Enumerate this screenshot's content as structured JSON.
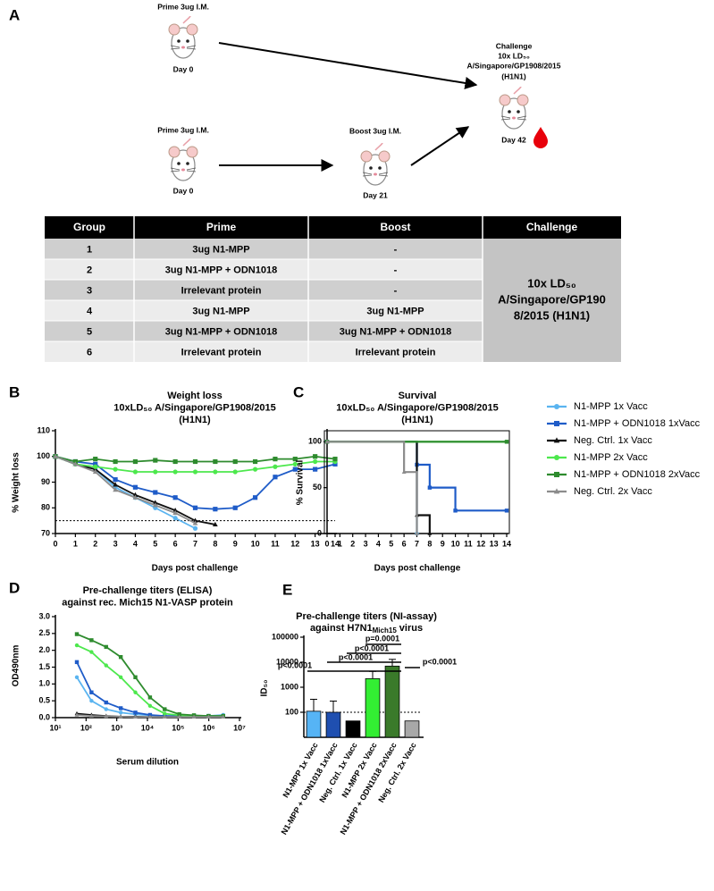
{
  "panel_labels": [
    "A",
    "B",
    "C",
    "D",
    "E"
  ],
  "schematic": {
    "prime_1": {
      "label": "Prime 3ug I.M.",
      "day": "Day 0"
    },
    "prime_2": {
      "label": "Prime 3ug I.M.",
      "day": "Day 0"
    },
    "boost": {
      "label": "Boost 3ug I.M.",
      "day": "Day 21"
    },
    "challenge": {
      "label": [
        "Challenge",
        "10x LD₅₀",
        "A/Singapore/GP1908/2015",
        "(H1N1)"
      ],
      "day": "Day 42"
    }
  },
  "table": {
    "header": [
      "Group",
      "Prime",
      "Boost",
      "Challenge"
    ],
    "rows": [
      [
        1,
        "3ug N1-MPP",
        "-"
      ],
      [
        2,
        "3ug N1-MPP + ODN1018",
        "-"
      ],
      [
        3,
        "Irrelevant protein",
        "-"
      ],
      [
        4,
        "3ug N1-MPP",
        "3ug N1-MPP"
      ],
      [
        5,
        "3ug N1-MPP + ODN1018",
        "3ug N1-MPP + ODN1018"
      ],
      [
        6,
        "Irrelevant protein",
        "Irrelevant protein"
      ]
    ],
    "challenge": [
      "10x LD₅₀",
      "A/Singapore/GP190",
      "8/2015 (H1N1)"
    ]
  },
  "chart_data": [
    {
      "type": "line",
      "title": [
        "Weight loss",
        "10xLD₅₀ A/Singapore/GP1908/2015",
        "(H1N1)"
      ],
      "x_label": "Days post challenge",
      "y_label": "% Weight loss",
      "x": [
        0,
        1,
        2,
        3,
        4,
        5,
        6,
        7,
        8,
        9,
        10,
        11,
        12,
        13,
        14
      ],
      "xlim": [
        0,
        14
      ],
      "xticks": [
        0,
        1,
        2,
        3,
        4,
        5,
        6,
        7,
        8,
        9,
        10,
        11,
        12,
        13,
        14
      ],
      "ylim": [
        70,
        110
      ],
      "yticks": [
        70,
        80,
        90,
        100,
        110
      ],
      "reference_line": 75,
      "series": [
        {
          "color": "#5ab4f0",
          "marker": "circle",
          "values": [
            100,
            97,
            95,
            88,
            84,
            80,
            76,
            72,
            null,
            null,
            null,
            null,
            null,
            null,
            null
          ]
        },
        {
          "color": "#1f5cc8",
          "marker": "square",
          "values": [
            100,
            98,
            97,
            91,
            88,
            86,
            84,
            80,
            79.5,
            80,
            84,
            92,
            95,
            95,
            97
          ]
        },
        {
          "color": "#111111",
          "marker": "triangle",
          "values": [
            100,
            97,
            95,
            89,
            85,
            82,
            79,
            75,
            73.5,
            null,
            null,
            null,
            null,
            null,
            null
          ]
        },
        {
          "color": "#4de84d",
          "marker": "circle",
          "values": [
            100,
            97,
            96,
            95,
            94,
            94,
            94,
            94,
            94,
            94,
            95,
            96,
            97,
            98,
            98
          ]
        },
        {
          "color": "#2e8b2e",
          "marker": "square",
          "values": [
            100,
            98,
            99,
            98,
            98,
            98.5,
            98,
            98,
            98,
            98,
            98,
            99,
            99,
            100,
            99
          ]
        },
        {
          "color": "#8c8c8c",
          "marker": "triangle",
          "values": [
            100,
            97,
            94,
            87,
            84,
            81,
            78,
            74,
            null,
            null,
            null,
            null,
            null,
            null,
            null
          ]
        }
      ]
    },
    {
      "type": "step",
      "title": [
        "Survival",
        "10xLD₅₀ A/Singapore/GP1908/2015",
        "(H1N1)"
      ],
      "x_label": "Days post challenge",
      "y_label": "% Survival",
      "xlim": [
        0,
        14
      ],
      "xticks": [
        0,
        1,
        2,
        3,
        4,
        5,
        6,
        7,
        8,
        9,
        10,
        11,
        12,
        13,
        14
      ],
      "ylim": [
        0,
        112
      ],
      "yticks": [
        0,
        50,
        100
      ],
      "legend": "right",
      "series": [
        {
          "name": "N1-MPP 1x Vacc",
          "color": "#5ab4f0",
          "marker": "circle",
          "x": [
            0,
            7
          ],
          "values": [
            100,
            0
          ]
        },
        {
          "name": "N1-MPP + ODN1018 1xVacc",
          "color": "#1f5cc8",
          "marker": "square",
          "x": [
            0,
            7,
            8,
            10,
            14
          ],
          "values": [
            100,
            75,
            50,
            25,
            25
          ]
        },
        {
          "name": "Neg. Ctrl. 1x Vacc",
          "color": "#111111",
          "marker": "triangle",
          "x": [
            0,
            7,
            8
          ],
          "values": [
            100,
            20,
            0
          ]
        },
        {
          "name": "N1-MPP 2x Vacc",
          "color": "#4de84d",
          "marker": "circle",
          "x": [
            0,
            14
          ],
          "values": [
            100,
            100
          ]
        },
        {
          "name": "N1-MPP + ODN1018 2xVacc",
          "color": "#2e8b2e",
          "marker": "square",
          "x": [
            0,
            14
          ],
          "values": [
            100,
            100
          ]
        },
        {
          "name": "Neg. Ctrl. 2x Vacc",
          "color": "#8c8c8c",
          "marker": "triangle",
          "x": [
            0,
            6,
            7
          ],
          "values": [
            100,
            67,
            0
          ]
        }
      ]
    },
    {
      "type": "line",
      "log_x": true,
      "title": [
        "Pre-challenge titers (ELISA)",
        "against rec. Mich15 N1-VASP protein"
      ],
      "x_label": "Serum dilution",
      "y_label": "OD490nm",
      "x": [
        50,
        150,
        450,
        1350,
        4050,
        12150,
        36450,
        109350,
        328050,
        984150,
        2952450
      ],
      "xlim": [
        10,
        10000000
      ],
      "xticks": [
        {
          "value": 10,
          "label": "10¹"
        },
        {
          "value": 100,
          "label": "10²"
        },
        {
          "value": 1000,
          "label": "10³"
        },
        {
          "value": 10000,
          "label": "10⁴"
        },
        {
          "value": 100000,
          "label": "10⁵"
        },
        {
          "value": 1000000,
          "label": "10⁶"
        },
        {
          "value": 10000000,
          "label": "10⁷"
        }
      ],
      "ylim": [
        0,
        3
      ],
      "yticks": [
        {
          "value": 0,
          "label": "0.0"
        },
        0.5,
        {
          "value": 1,
          "label": "1.0"
        },
        1.5,
        {
          "value": 2,
          "label": "2.0"
        },
        2.5,
        {
          "value": 3,
          "label": "3.0"
        }
      ],
      "series": [
        {
          "color": "#5ab4f0",
          "marker": "circle",
          "values": [
            1.2,
            0.5,
            0.25,
            0.15,
            0.1,
            0.07,
            0.05,
            0.04,
            0.05,
            0.05,
            0.08
          ]
        },
        {
          "color": "#1f5cc8",
          "marker": "square",
          "values": [
            1.65,
            0.75,
            0.45,
            0.28,
            0.15,
            0.08,
            0.05,
            0.05,
            0.05,
            0.05,
            0.05
          ]
        },
        {
          "color": "#111111",
          "marker": "triangle",
          "values": [
            0.12,
            0.08,
            0.05,
            0.03,
            0.03,
            0.02,
            0.02,
            0.02,
            0.02,
            0.02,
            0.02
          ]
        },
        {
          "color": "#4de84d",
          "marker": "circle",
          "values": [
            2.15,
            1.95,
            1.55,
            1.2,
            0.75,
            0.35,
            0.12,
            0.07,
            0.05,
            0.05,
            0.05
          ]
        },
        {
          "color": "#2e8b2e",
          "marker": "square",
          "values": [
            2.48,
            2.3,
            2.1,
            1.8,
            1.2,
            0.6,
            0.25,
            0.1,
            0.07,
            0.05,
            0.05
          ]
        },
        {
          "color": "#8c8c8c",
          "marker": "triangle",
          "values": [
            0.08,
            0.05,
            0.04,
            0.03,
            0.02,
            0.02,
            0.02,
            0.02,
            0.02,
            0.02,
            0.02
          ]
        }
      ]
    },
    {
      "type": "bar",
      "log_y": true,
      "title": "Pre-challenge titers (NI-assay)",
      "subtitle": [
        "against H7N1",
        "Mich15",
        "virus"
      ],
      "y_label": "ID₅₀",
      "categories": [
        "N1-MPP 1x Vacc",
        "N1-MPP + ODN1018 1xVacc",
        "Neg. Ctrl. 1x Vacc",
        "N1-MPP 2x Vacc",
        "N1-MPP + ODN1018 2xVacc",
        "Neg. Ctrl. 2x Vacc"
      ],
      "values": [
        110,
        100,
        45,
        2200,
        7000,
        45
      ],
      "errors": [
        220,
        180,
        null,
        2100,
        6000,
        null
      ],
      "colors": [
        "#56b4f5",
        "#1f4fb0",
        "#000000",
        "#33ee33",
        "#3a7a2a",
        "#a8a8a8"
      ],
      "ylim": [
        10,
        100000
      ],
      "yticks": [
        100,
        1000,
        10000,
        100000
      ],
      "reference_line": 100,
      "annotations": [
        "p=0.0001",
        "p<0.0001",
        "p<0.0001",
        "p<0.0001",
        "p<0.0001"
      ]
    }
  ]
}
